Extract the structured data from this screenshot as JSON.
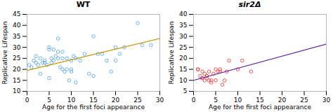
{
  "chart_data": [
    {
      "type": "scatter",
      "title": "WT",
      "xlabel": "Age for the first foci appearance",
      "ylabel": "Replicative Lifespan",
      "xlim": [
        0,
        30
      ],
      "ylim": [
        10,
        45
      ],
      "xticks": [
        0,
        5,
        10,
        15,
        20,
        25,
        30
      ],
      "yticks": [
        10,
        15,
        20,
        25,
        30,
        35,
        40,
        45
      ],
      "series": [
        {
          "type": "scatter",
          "marker": "circle",
          "color": "#5aaaee",
          "x": [
            0.5,
            1,
            1.5,
            2,
            2,
            2.5,
            3,
            3,
            3.5,
            4,
            4,
            4.5,
            5,
            5,
            5,
            5.5,
            5.5,
            6,
            6,
            6.5,
            7,
            7,
            7,
            7.5,
            8,
            8,
            8,
            8.5,
            9,
            9,
            9.5,
            10,
            10,
            10,
            10.5,
            11,
            11,
            12,
            13,
            14,
            15,
            15,
            16,
            17,
            18,
            19,
            20,
            20,
            21,
            22,
            25,
            26,
            28
          ],
          "values": [
            22,
            21,
            24,
            23,
            26,
            22,
            25,
            18,
            23,
            24,
            23,
            22,
            30,
            29,
            16,
            25,
            23,
            29,
            24,
            26,
            34,
            28,
            25,
            21,
            28,
            25,
            20,
            19,
            25,
            20,
            15,
            24,
            20,
            19,
            26,
            25,
            14,
            24,
            27,
            18,
            35,
            17,
            27,
            27,
            24,
            19,
            30,
            24,
            27,
            30,
            41,
            31,
            31
          ]
        },
        {
          "type": "line",
          "color": "#c8960c",
          "x": [
            0,
            30
          ],
          "values": [
            19.5,
            34.0
          ]
        }
      ]
    },
    {
      "type": "scatter",
      "title": "sir2Δ",
      "xlabel": "Age for the first foci appearance",
      "ylabel": "Replicative Lifespan",
      "xlim": [
        0,
        30
      ],
      "ylim": [
        5,
        40
      ],
      "xticks": [
        0,
        5,
        10,
        15,
        20,
        25,
        30
      ],
      "yticks": [
        5,
        10,
        15,
        20,
        25,
        30,
        35,
        40
      ],
      "series": [
        {
          "type": "scatter",
          "marker": "circle",
          "color": "#ee4444",
          "x": [
            1,
            1,
            1.5,
            2,
            2,
            2,
            2.5,
            2.5,
            3,
            3,
            3,
            3.5,
            3.5,
            4,
            4,
            4.5,
            5,
            5,
            5.5,
            6,
            6,
            6.5,
            7,
            7.5,
            8,
            10,
            11,
            13
          ],
          "values": [
            15,
            15,
            12,
            11,
            11,
            14,
            10,
            13,
            12,
            12,
            11,
            14,
            10,
            10,
            9,
            13,
            15,
            10,
            14,
            14,
            15,
            8,
            10,
            14,
            19,
            15,
            19,
            14
          ]
        },
        {
          "type": "line",
          "color": "#6020a0",
          "x": [
            0,
            30
          ],
          "values": [
            10.0,
            26.5
          ]
        }
      ]
    }
  ]
}
